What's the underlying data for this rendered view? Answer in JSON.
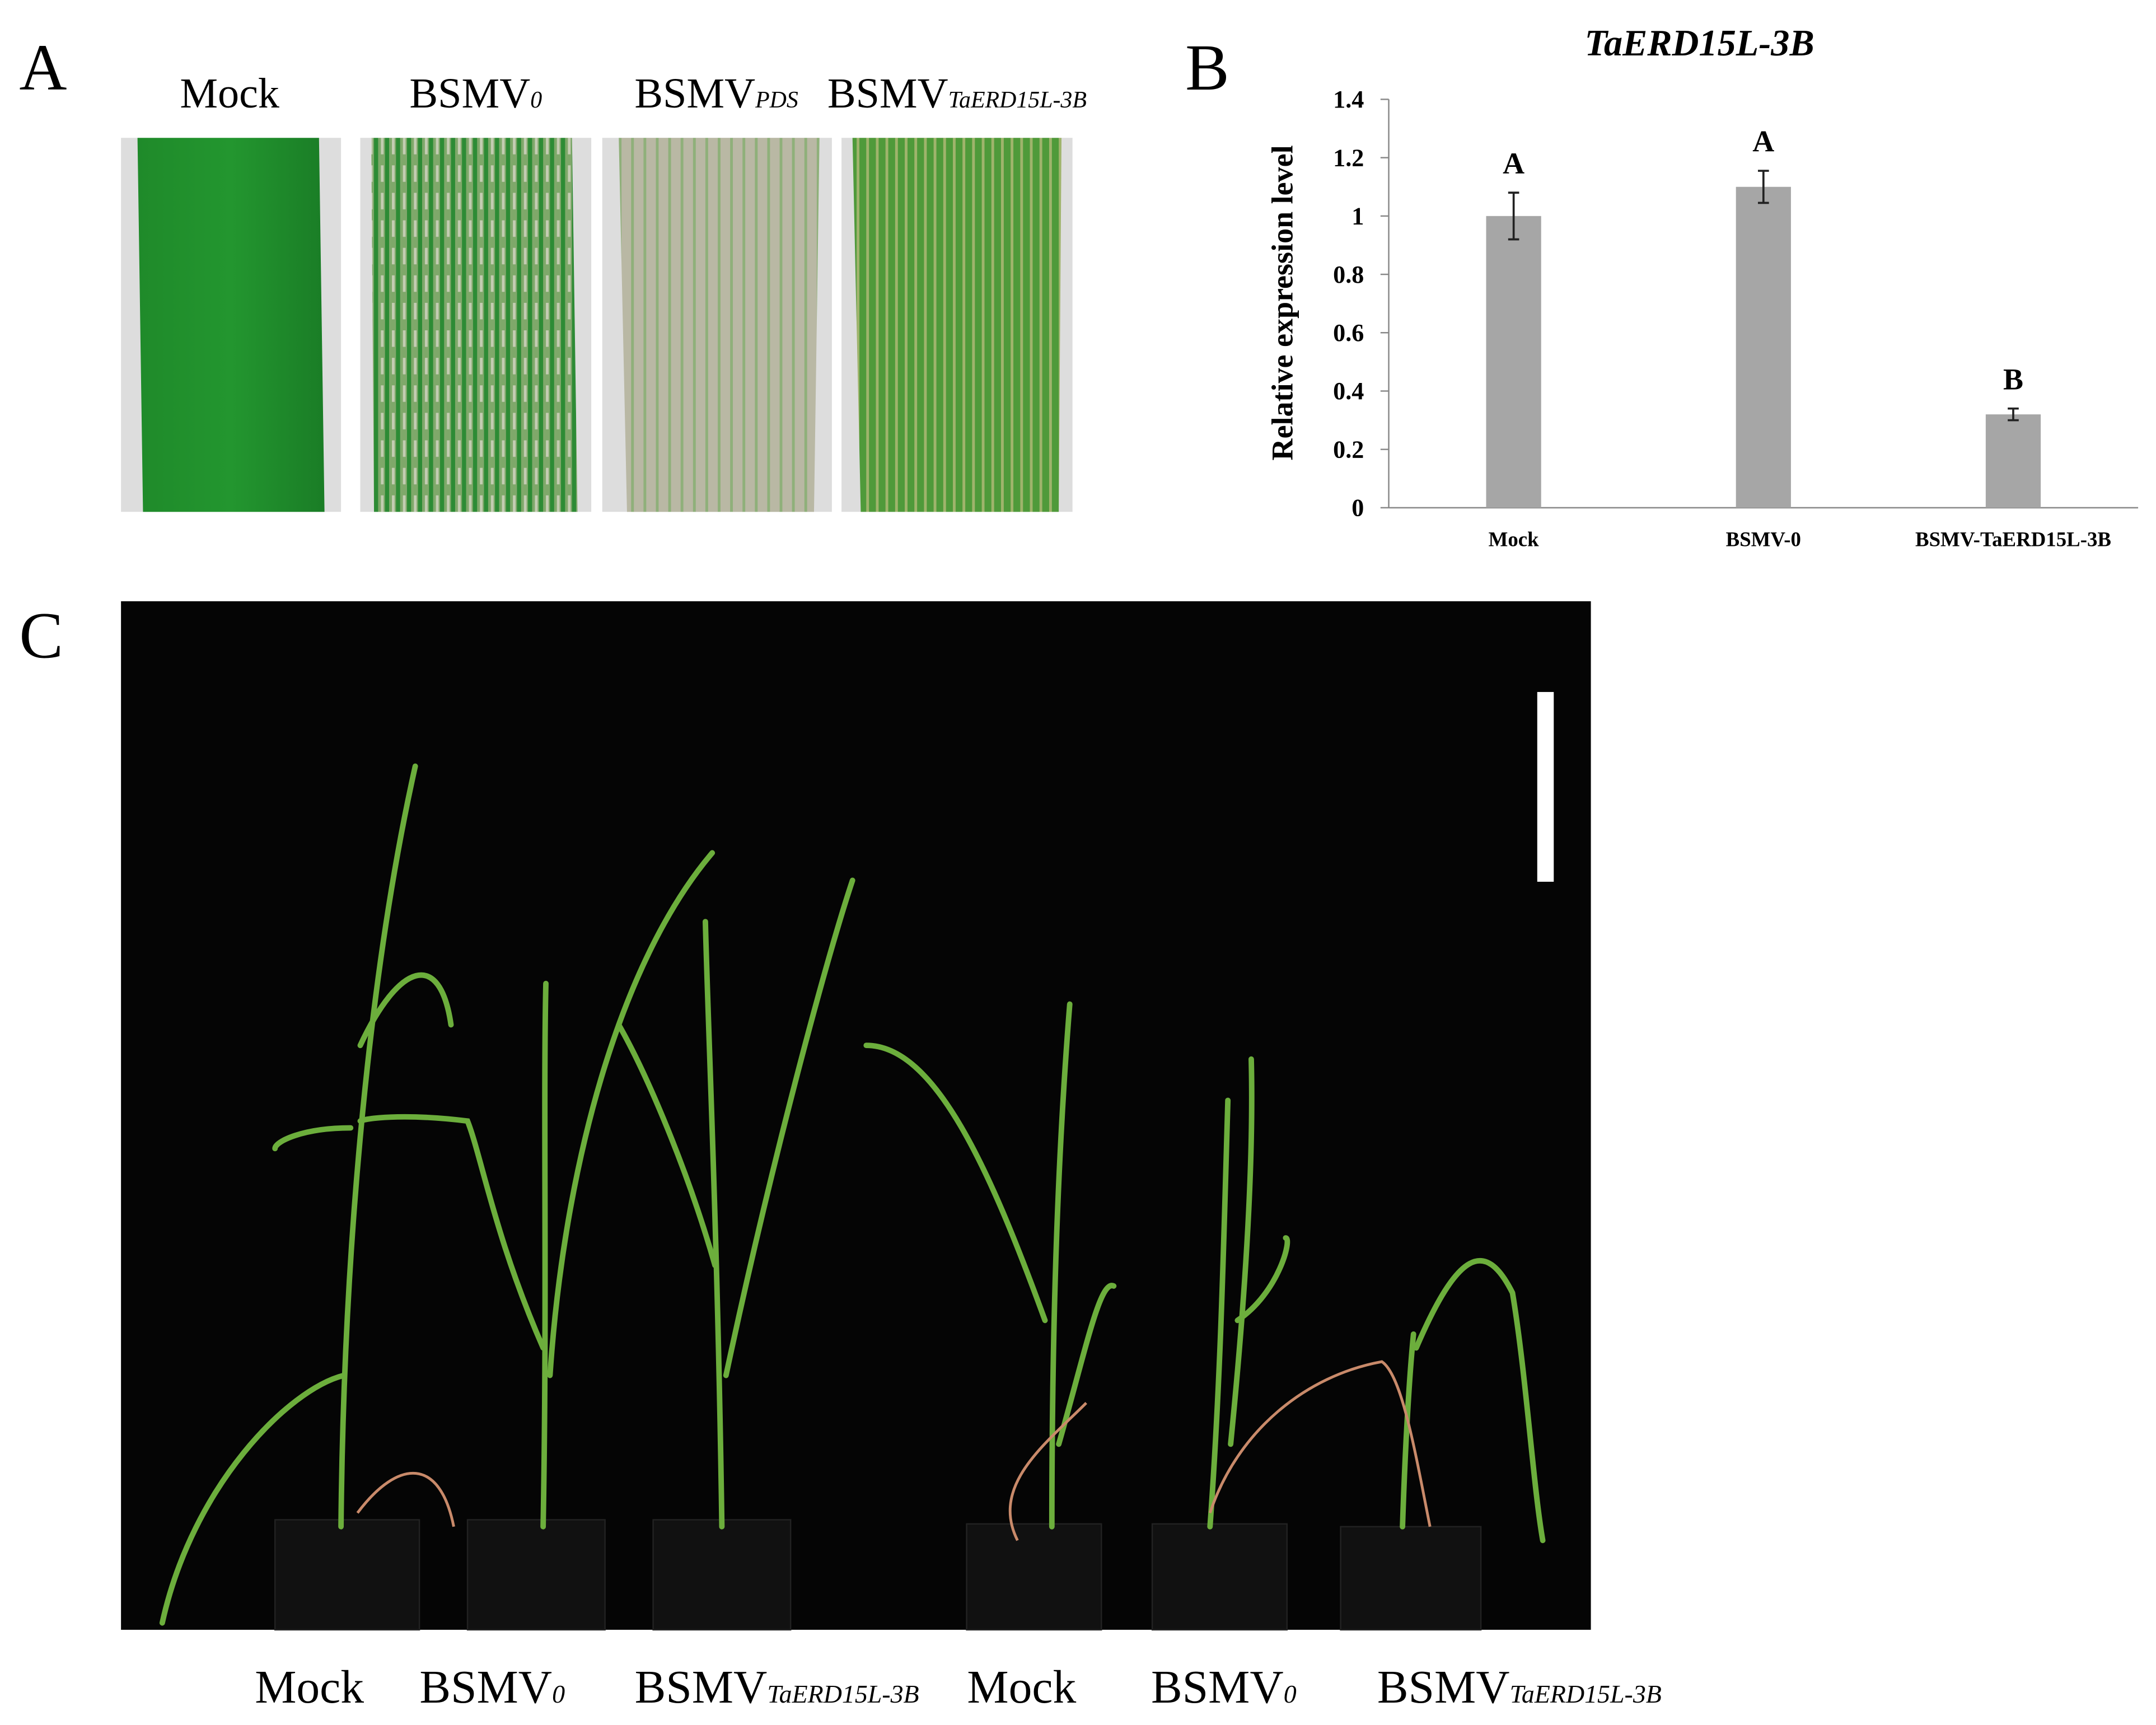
{
  "panel_labels": [
    "A",
    "B",
    "C"
  ],
  "panel_a": {
    "labels": [
      [
        "Mock"
      ],
      [
        "BSMV",
        "0"
      ],
      [
        "BSMV",
        "PDS"
      ],
      [
        "BSMV",
        "TaERD15L-3B"
      ]
    ]
  },
  "chart_data": {
    "type": "bar",
    "title": "TaERD15L-3B",
    "y_label": "Relative expression level",
    "categories": [
      "Mock",
      "BSMV-0",
      "BSMV-TaERD15L-3B"
    ],
    "values": [
      1.0,
      1.1,
      0.32
    ],
    "errors": [
      0.08,
      0.055,
      0.02
    ],
    "annotations": [
      "A",
      "A",
      "B"
    ],
    "color": "#a6a6a6",
    "ylim": [
      0,
      1.4
    ],
    "yticks": [
      0,
      0.2,
      0.4,
      0.6,
      0.8,
      1,
      1.2,
      1.4
    ],
    "grid": false
  },
  "panel_c": {
    "labels": [
      [
        "Mock"
      ],
      [
        "BSMV",
        "0"
      ],
      [
        "BSMV",
        "TaERD15L-3B"
      ],
      [
        "Mock"
      ],
      [
        "BSMV",
        "0"
      ],
      [
        "BSMV",
        "TaERD15L-3B"
      ]
    ]
  }
}
